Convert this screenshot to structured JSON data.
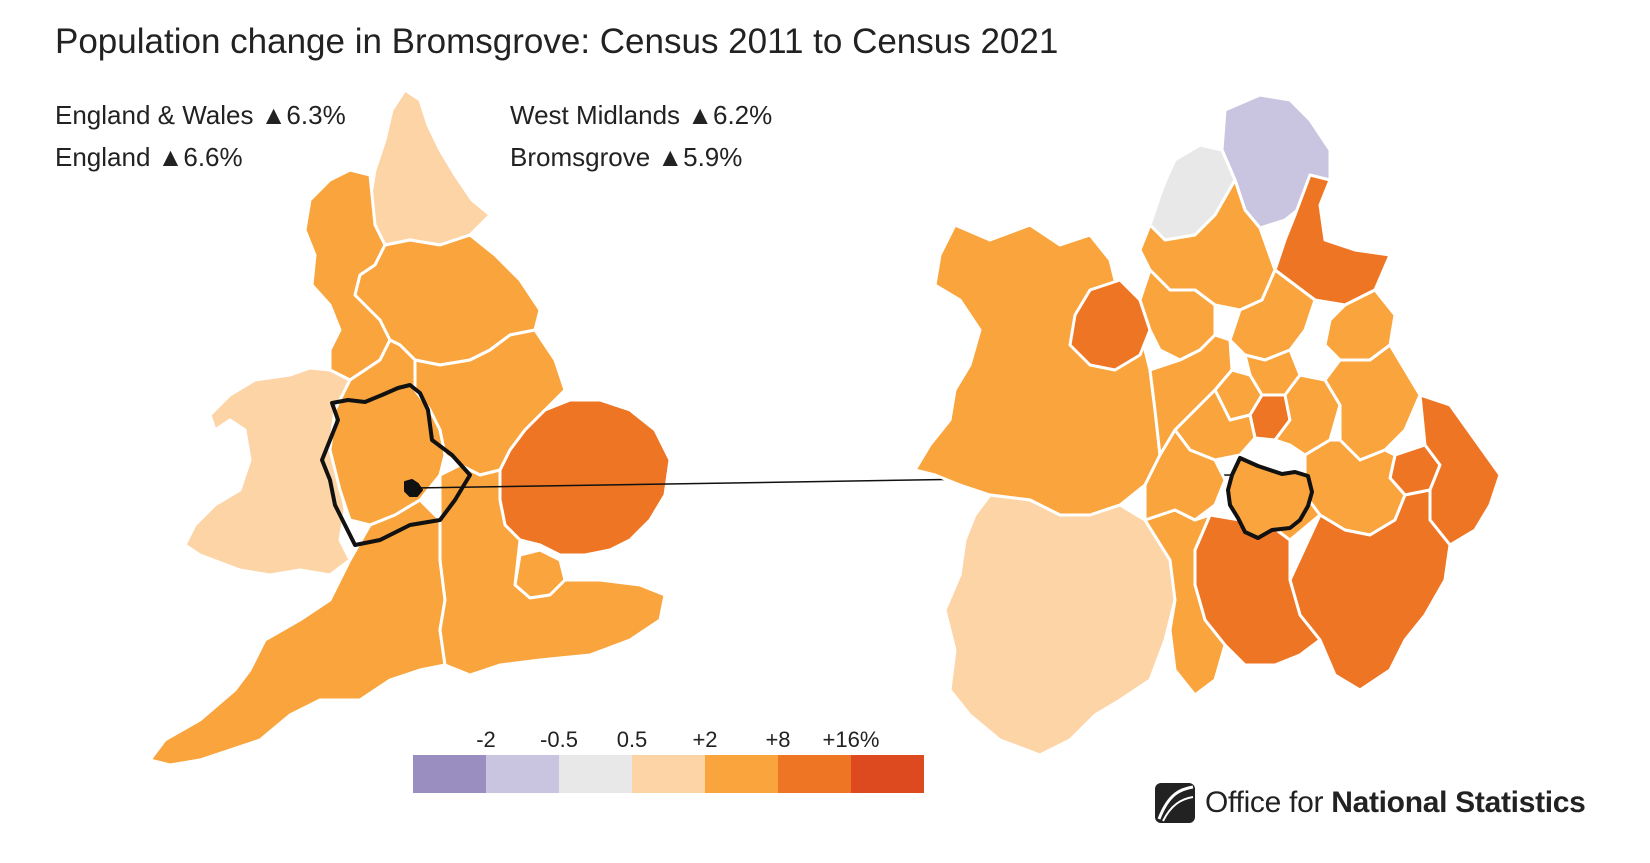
{
  "title": "Population change in Bromsgrove: Census 2011 to Census 2021",
  "stats": {
    "england_wales": "England & Wales ▲6.3%",
    "england": "England ▲6.6%",
    "west_midlands": "West Midlands ▲6.2%",
    "bromsgrove": "Bromsgrove ▲5.9%"
  },
  "legend": {
    "ticks": [
      "-2",
      "-0.5",
      "0.5",
      "+2",
      "+8",
      "+16%"
    ],
    "colors": [
      "#9a8dbf",
      "#c9c5e0",
      "#e8e8e8",
      "#fdd4a6",
      "#f9a43c",
      "#ee7524",
      "#dd4a20"
    ]
  },
  "colors": {
    "orange_mid": "#f9a43c",
    "orange_dark": "#ee7524",
    "peach": "#fdd4a6",
    "lavender": "#c9c5e0",
    "grey": "#e8e8e8",
    "outline": "#111111"
  },
  "logo": {
    "prefix": "Office for ",
    "bold": "National Statistics"
  }
}
